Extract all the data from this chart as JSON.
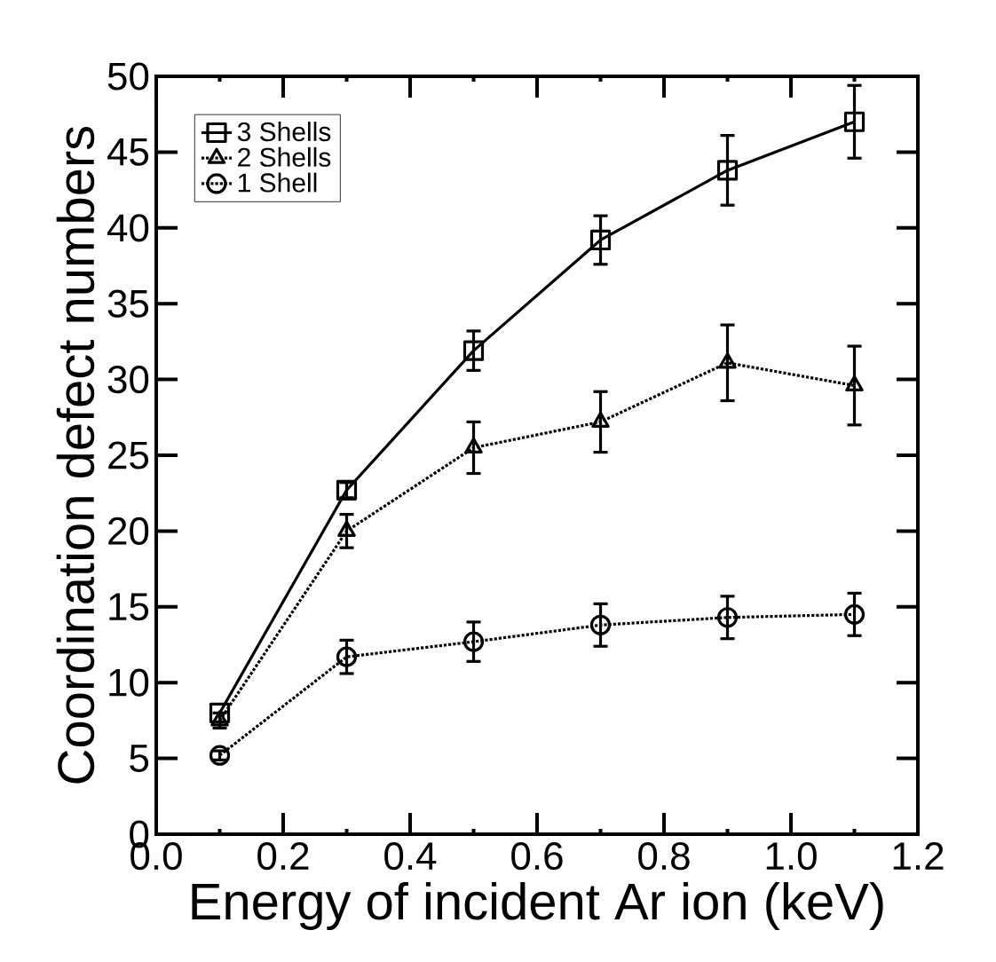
{
  "chart_data": {
    "type": "line",
    "xlabel": "Energy of incident Ar ion (keV)",
    "ylabel": "Coordination defect numbers",
    "x": [
      0.1,
      0.3,
      0.5,
      0.7,
      0.9,
      1.1
    ],
    "series": [
      {
        "name": "3 Shells",
        "color": "#000000",
        "marker": "square",
        "line_style": "solid",
        "values": [
          8.0,
          22.7,
          31.9,
          39.2,
          43.8,
          47.0
        ],
        "errors": [
          null,
          0.5,
          1.3,
          1.6,
          2.3,
          2.4
        ]
      },
      {
        "name": "2 Shells",
        "color": "#000000",
        "marker": "triangle",
        "line_style": "dotted",
        "values": [
          7.5,
          20.0,
          25.5,
          27.2,
          31.1,
          29.6
        ],
        "errors": [
          0.5,
          1.1,
          1.7,
          2.0,
          2.5,
          2.6
        ]
      },
      {
        "name": "1 Shell",
        "color": "#000000",
        "marker": "circle",
        "line_style": "dotted",
        "values": [
          5.2,
          11.7,
          12.7,
          13.8,
          14.3,
          14.5
        ],
        "errors": [
          0.3,
          1.1,
          1.3,
          1.4,
          1.4,
          1.4
        ]
      }
    ],
    "xlim": [
      0.0,
      1.2
    ],
    "ylim": [
      0,
      50
    ],
    "xticks": [
      {
        "value": 0.0,
        "label": "0.0"
      },
      {
        "value": 0.2,
        "label": "0.2"
      },
      {
        "value": 0.4,
        "label": "0.4"
      },
      {
        "value": 0.6,
        "label": "0.6"
      },
      {
        "value": 0.8,
        "label": "0.8"
      },
      {
        "value": 1.0,
        "label": "1.0"
      },
      {
        "value": 1.2,
        "label": "1.2"
      }
    ],
    "yticks": [
      0,
      5,
      10,
      15,
      20,
      25,
      30,
      35,
      40,
      45,
      50
    ],
    "legend": "top left",
    "grid": false
  }
}
